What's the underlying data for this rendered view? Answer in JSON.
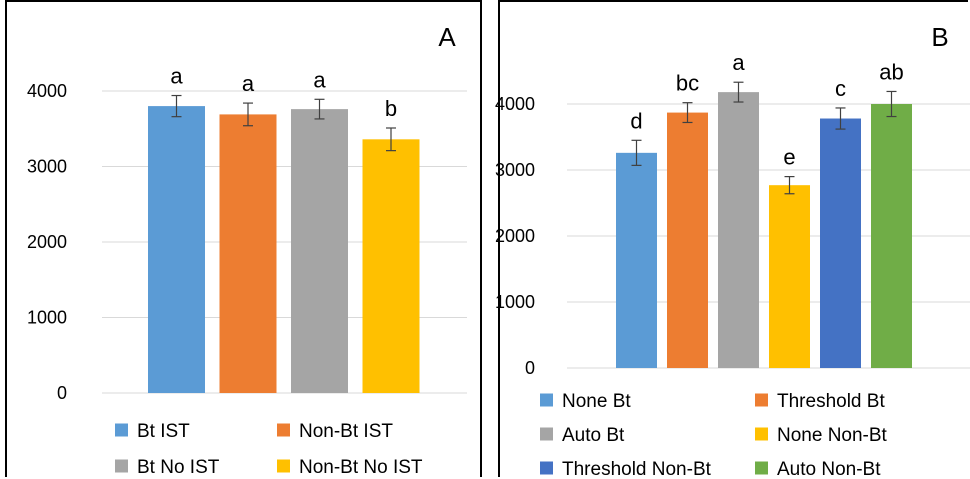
{
  "chart_data": [
    {
      "type": "bar",
      "panel_label": "A",
      "categories": [
        "Bt IST",
        "Non-Bt IST",
        "Bt No IST",
        "Non-Bt No IST"
      ],
      "values": [
        3800,
        3690,
        3760,
        3360
      ],
      "errors": [
        140,
        150,
        130,
        150
      ],
      "letters": [
        "a",
        "a",
        "a",
        "b"
      ],
      "colors": [
        "#5B9BD5",
        "#ED7D31",
        "#A5A5A5",
        "#FFC000"
      ],
      "yticks": [
        0,
        1000,
        2000,
        3000,
        4000
      ],
      "ylim": [
        0,
        4800
      ],
      "grid": true,
      "legend_position": "bottom"
    },
    {
      "type": "bar",
      "panel_label": "B",
      "categories": [
        "None Bt",
        "Threshold Bt",
        "Auto Bt",
        "None Non-Bt",
        "Threshold Non-Bt",
        "Auto Non-Bt"
      ],
      "values": [
        3260,
        3870,
        4180,
        2770,
        3780,
        4000
      ],
      "errors": [
        190,
        150,
        150,
        130,
        160,
        190
      ],
      "letters": [
        "d",
        "bc",
        "a",
        "e",
        "c",
        "ab"
      ],
      "colors": [
        "#5B9BD5",
        "#ED7D31",
        "#A5A5A5",
        "#FFC000",
        "#4472C4",
        "#70AD47"
      ],
      "yticks": [
        0,
        1000,
        2000,
        3000,
        4000
      ],
      "ylim": [
        0,
        4800
      ],
      "grid": true,
      "legend_position": "bottom"
    }
  ]
}
